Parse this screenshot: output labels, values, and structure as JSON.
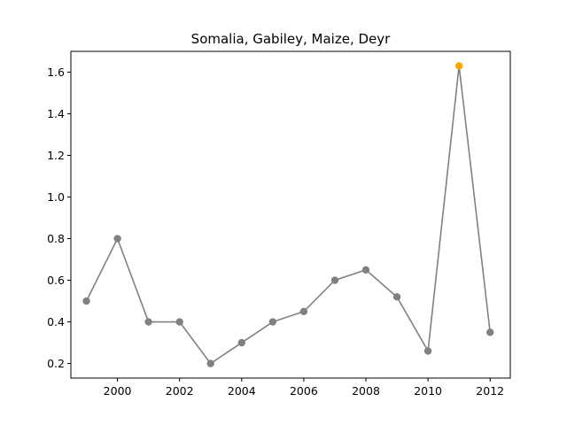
{
  "chart_data": {
    "type": "line",
    "title": "Somalia, Gabiley, Maize, Deyr",
    "xlabel": "",
    "ylabel": "",
    "xlim": [
      1998.5,
      2012.65
    ],
    "ylim": [
      0.13,
      1.7
    ],
    "x_ticks": [
      2000,
      2002,
      2004,
      2006,
      2008,
      2010,
      2012
    ],
    "y_ticks": [
      0.2,
      0.4,
      0.6,
      0.8,
      1.0,
      1.2,
      1.4,
      1.6
    ],
    "grid": false,
    "series": [
      {
        "line_color": "#808080",
        "marker_color": "#808080",
        "x": [
          1999,
          2000,
          2001,
          2002,
          2003,
          2004,
          2005,
          2006,
          2007,
          2008,
          2009,
          2010,
          2011,
          2012
        ],
        "y": [
          0.5,
          0.8,
          0.4,
          0.4,
          0.2,
          0.3,
          0.4,
          0.45,
          0.6,
          0.65,
          0.52,
          0.26,
          1.63,
          0.35
        ]
      }
    ],
    "highlight": {
      "x": 2011,
      "y": 1.63,
      "color": "#ffa500"
    }
  }
}
